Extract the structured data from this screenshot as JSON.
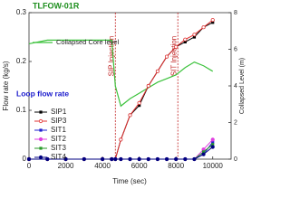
{
  "chart_data": {
    "type": "line",
    "title": "TLFOW-01R",
    "x_label": "Time (sec)",
    "y_label": "Flow rate (kg/s)",
    "y2_label": "Collapsed Level (m)",
    "legend_title": "Loop flow rate",
    "x": [
      0,
      1000,
      2000,
      3000,
      4000,
      4500,
      4700,
      5000,
      5500,
      6000,
      6500,
      7000,
      7500,
      8000,
      8500,
      9000,
      9500,
      10000
    ],
    "xlim": [
      0,
      11000
    ],
    "xticks": [
      0,
      2000,
      4000,
      6000,
      8000,
      10000
    ],
    "ylim": [
      0,
      0.3
    ],
    "yticks": [
      0,
      0.1,
      0.2,
      0.3
    ],
    "y2lim": [
      0,
      8
    ],
    "y2ticks": [
      0,
      2,
      4,
      6,
      8
    ],
    "annotations": [
      {
        "text": "SIP Injection",
        "x": 4700
      },
      {
        "text": "SIT Injection",
        "x": 8100
      }
    ],
    "series": [
      {
        "name": "Collapsed Core level",
        "color": "#3cc23c",
        "axis": "y2",
        "values": [
          6.3,
          6.5,
          6.5,
          6.5,
          6.5,
          6.5,
          4.0,
          2.9,
          3.3,
          3.6,
          3.9,
          4.2,
          4.4,
          4.6,
          5.0,
          5.3,
          5.1,
          4.8
        ]
      },
      {
        "name": "SIP1",
        "color": "#000000",
        "values": [
          0,
          0,
          0,
          0,
          0,
          0,
          0,
          0.04,
          0.09,
          0.11,
          0.15,
          0.18,
          0.21,
          0.23,
          0.24,
          0.25,
          0.27,
          0.28
        ]
      },
      {
        "name": "SIP3",
        "color": "#e03030",
        "values": [
          0,
          0,
          0,
          0,
          0,
          0,
          0,
          0.04,
          0.09,
          0.115,
          0.15,
          0.18,
          0.21,
          0.23,
          0.245,
          0.255,
          0.27,
          0.285
        ]
      },
      {
        "name": "SIT1",
        "color": "#2020d0",
        "values": [
          0,
          0,
          0,
          0,
          0,
          0,
          0,
          0,
          0,
          0,
          0,
          0,
          0,
          0,
          0,
          0,
          0.01,
          0.035
        ]
      },
      {
        "name": "SIT2",
        "color": "#e040e0",
        "values": [
          0,
          0,
          0,
          0,
          0,
          0,
          0,
          0,
          0,
          0,
          0,
          0,
          0,
          0,
          0,
          0,
          0.02,
          0.04
        ]
      },
      {
        "name": "SIT3",
        "color": "#2a9a2a",
        "values": [
          0,
          0,
          0,
          0,
          0,
          0,
          0,
          0,
          0,
          0,
          0,
          0,
          0,
          0,
          0,
          0,
          0.015,
          0.03
        ]
      },
      {
        "name": "SIT4",
        "color": "#000080",
        "values": [
          0,
          0,
          0,
          0,
          0,
          0,
          0,
          0,
          0,
          0,
          0,
          0,
          0,
          0,
          0,
          0,
          0.01,
          0.025
        ]
      }
    ]
  }
}
